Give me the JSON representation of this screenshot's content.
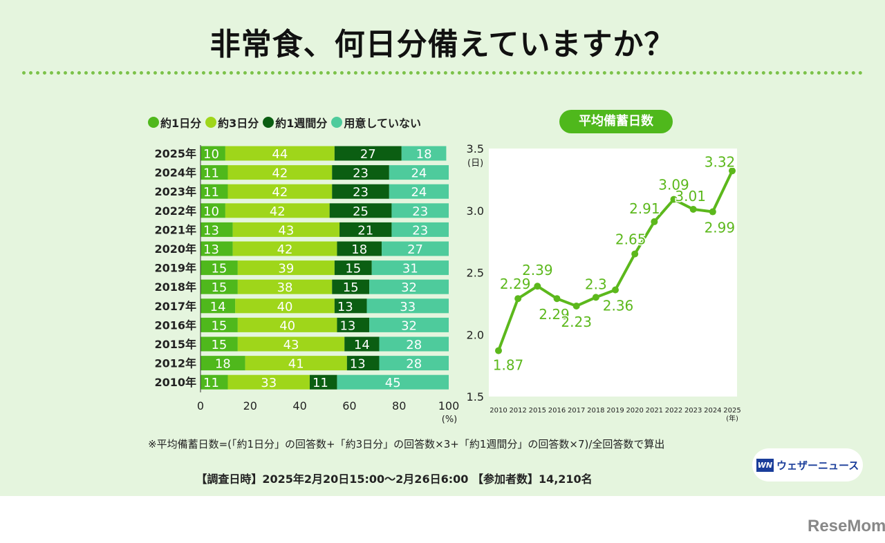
{
  "title": "非常食、何日分備えていますか？",
  "chart_data": [
    {
      "type": "bar",
      "orientation": "horizontal",
      "stacked": true,
      "categories": [
        "2025年",
        "2024年",
        "2023年",
        "2022年",
        "2021年",
        "2020年",
        "2019年",
        "2018年",
        "2017年",
        "2016年",
        "2015年",
        "2012年",
        "2010年"
      ],
      "series": [
        {
          "name": "約1日分",
          "color": "#4fb81c",
          "values": [
            10,
            11,
            11,
            10,
            13,
            13,
            15,
            15,
            14,
            15,
            15,
            18,
            11
          ]
        },
        {
          "name": "約3日分",
          "color": "#9fd61a",
          "values": [
            44,
            42,
            42,
            42,
            43,
            42,
            39,
            38,
            40,
            40,
            43,
            41,
            33
          ]
        },
        {
          "name": "約1週間分",
          "color": "#0b5e12",
          "values": [
            27,
            23,
            23,
            25,
            21,
            18,
            15,
            15,
            13,
            13,
            14,
            13,
            11
          ]
        },
        {
          "name": "用意していない",
          "color": "#4ecb9c",
          "values": [
            18,
            24,
            24,
            23,
            23,
            27,
            31,
            32,
            33,
            32,
            28,
            28,
            45
          ]
        }
      ],
      "xlim": [
        0,
        100
      ],
      "xticks": [
        "0",
        "20",
        "40",
        "60",
        "80",
        "100"
      ],
      "xunit": "(%)",
      "legend": "top"
    },
    {
      "type": "line",
      "title": "平均備蓄日数",
      "x": [
        "2010",
        "2012",
        "2015",
        "2016",
        "2017",
        "2018",
        "2019",
        "2020",
        "2021",
        "2022",
        "2023",
        "2024",
        "2025"
      ],
      "values": [
        1.87,
        2.29,
        2.39,
        2.29,
        2.23,
        2.3,
        2.36,
        2.65,
        2.91,
        3.09,
        3.01,
        2.99,
        3.32
      ],
      "labels": [
        "1.87",
        "2.29",
        "2.39",
        "2.29",
        "2.23",
        "2.3",
        "2.36",
        "2.65",
        "2.91",
        "3.09",
        "3.01",
        "2.99",
        "3.32"
      ],
      "ylim": [
        1.5,
        3.5
      ],
      "yticks": [
        "1.5",
        "2.0",
        "2.5",
        "3.0",
        "3.5"
      ],
      "yunit": "(日)",
      "xunit": "(年)",
      "color": "#5cb81c"
    }
  ],
  "note": "※平均備蓄日数=(「約1日分」の回答数+「約3日分」の回答数×3+「約1週間分」の回答数×7)/全回答数で算出",
  "survey": "【調査日時】2025年2月20日15:00〜2月26日6:00 【参加者数】14,210名",
  "logo": {
    "mark": "WN",
    "text": "ウェザーニュース"
  },
  "watermark": "ReseMom"
}
